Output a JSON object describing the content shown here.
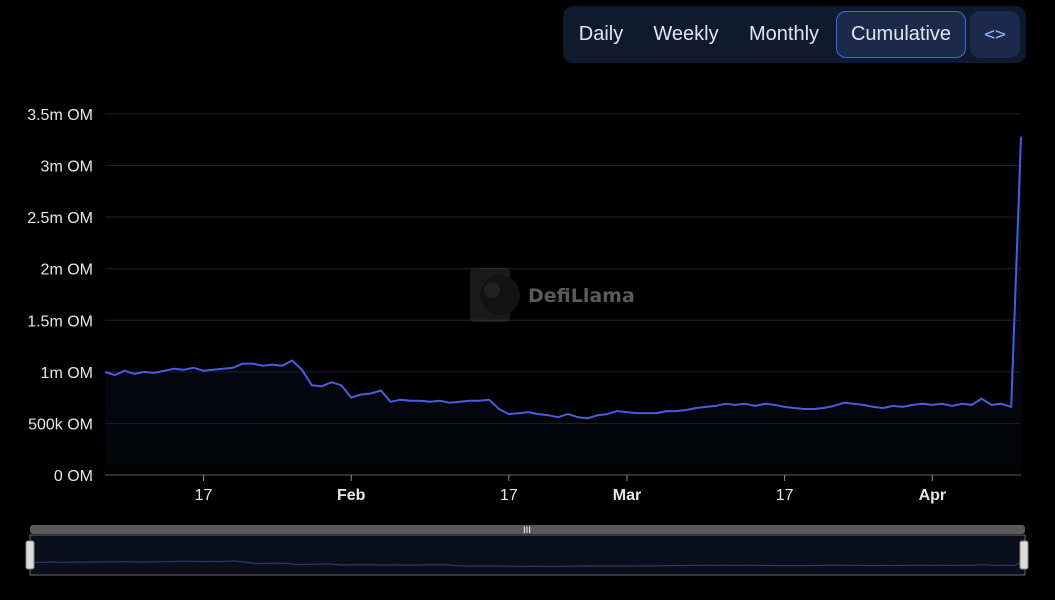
{
  "toggle": {
    "tabs": [
      {
        "label": "Daily",
        "active": false
      },
      {
        "label": "Weekly",
        "active": false
      },
      {
        "label": "Monthly",
        "active": false
      },
      {
        "label": "Cumulative",
        "active": true
      }
    ],
    "embed_label": "<>"
  },
  "watermark": {
    "text": "DefiLlama"
  },
  "colors": {
    "line": "#4a5ce0",
    "grid": "#1e2430",
    "axis_text": "#e6e6e6",
    "tab_active_border": "#3c6bd6"
  },
  "chart_data": {
    "type": "line",
    "title": "",
    "xlabel": "",
    "ylabel": "",
    "ylim": [
      0,
      3500000
    ],
    "y_ticks": [
      {
        "value": 0,
        "label": "0 OM"
      },
      {
        "value": 500000,
        "label": "500k OM"
      },
      {
        "value": 1000000,
        "label": "1m OM"
      },
      {
        "value": 1500000,
        "label": "1.5m OM"
      },
      {
        "value": 2000000,
        "label": "2m OM"
      },
      {
        "value": 2500000,
        "label": "2.5m OM"
      },
      {
        "value": 3000000,
        "label": "3m OM"
      },
      {
        "value": 3500000,
        "label": "3.5m OM"
      }
    ],
    "x_range": [
      "2025-01-07",
      "2025-04-10"
    ],
    "x_ticks": [
      {
        "date": "2025-01-17",
        "label": "17",
        "bold": false
      },
      {
        "date": "2025-02-01",
        "label": "Feb",
        "bold": true
      },
      {
        "date": "2025-02-17",
        "label": "17",
        "bold": false
      },
      {
        "date": "2025-03-01",
        "label": "Mar",
        "bold": true
      },
      {
        "date": "2025-03-17",
        "label": "17",
        "bold": false
      },
      {
        "date": "2025-04-01",
        "label": "Apr",
        "bold": true
      }
    ],
    "series": [
      {
        "points": [
          [
            "2025-01-07",
            1000000
          ],
          [
            "2025-01-08",
            970000
          ],
          [
            "2025-01-09",
            1010000
          ],
          [
            "2025-01-10",
            980000
          ],
          [
            "2025-01-11",
            1000000
          ],
          [
            "2025-01-12",
            990000
          ],
          [
            "2025-01-13",
            1010000
          ],
          [
            "2025-01-14",
            1030000
          ],
          [
            "2025-01-15",
            1020000
          ],
          [
            "2025-01-16",
            1040000
          ],
          [
            "2025-01-17",
            1010000
          ],
          [
            "2025-01-18",
            1020000
          ],
          [
            "2025-01-19",
            1030000
          ],
          [
            "2025-01-20",
            1040000
          ],
          [
            "2025-01-21",
            1080000
          ],
          [
            "2025-01-22",
            1080000
          ],
          [
            "2025-01-23",
            1060000
          ],
          [
            "2025-01-24",
            1070000
          ],
          [
            "2025-01-25",
            1060000
          ],
          [
            "2025-01-26",
            1110000
          ],
          [
            "2025-01-27",
            1020000
          ],
          [
            "2025-01-28",
            870000
          ],
          [
            "2025-01-29",
            860000
          ],
          [
            "2025-01-30",
            900000
          ],
          [
            "2025-01-31",
            870000
          ],
          [
            "2025-02-01",
            750000
          ],
          [
            "2025-02-02",
            780000
          ],
          [
            "2025-02-03",
            790000
          ],
          [
            "2025-02-04",
            820000
          ],
          [
            "2025-02-05",
            710000
          ],
          [
            "2025-02-06",
            730000
          ],
          [
            "2025-02-07",
            720000
          ],
          [
            "2025-02-08",
            720000
          ],
          [
            "2025-02-09",
            710000
          ],
          [
            "2025-02-10",
            720000
          ],
          [
            "2025-02-11",
            700000
          ],
          [
            "2025-02-12",
            710000
          ],
          [
            "2025-02-13",
            720000
          ],
          [
            "2025-02-14",
            720000
          ],
          [
            "2025-02-15",
            730000
          ],
          [
            "2025-02-16",
            640000
          ],
          [
            "2025-02-17",
            590000
          ],
          [
            "2025-02-18",
            600000
          ],
          [
            "2025-02-19",
            610000
          ],
          [
            "2025-02-20",
            590000
          ],
          [
            "2025-02-21",
            580000
          ],
          [
            "2025-02-22",
            560000
          ],
          [
            "2025-02-23",
            590000
          ],
          [
            "2025-02-24",
            560000
          ],
          [
            "2025-02-25",
            550000
          ],
          [
            "2025-02-26",
            580000
          ],
          [
            "2025-02-27",
            590000
          ],
          [
            "2025-02-28",
            620000
          ],
          [
            "2025-03-01",
            610000
          ],
          [
            "2025-03-02",
            600000
          ],
          [
            "2025-03-03",
            600000
          ],
          [
            "2025-03-04",
            600000
          ],
          [
            "2025-03-05",
            620000
          ],
          [
            "2025-03-06",
            620000
          ],
          [
            "2025-03-07",
            630000
          ],
          [
            "2025-03-08",
            650000
          ],
          [
            "2025-03-09",
            660000
          ],
          [
            "2025-03-10",
            670000
          ],
          [
            "2025-03-11",
            690000
          ],
          [
            "2025-03-12",
            680000
          ],
          [
            "2025-03-13",
            690000
          ],
          [
            "2025-03-14",
            670000
          ],
          [
            "2025-03-15",
            690000
          ],
          [
            "2025-03-16",
            680000
          ],
          [
            "2025-03-17",
            660000
          ],
          [
            "2025-03-18",
            650000
          ],
          [
            "2025-03-19",
            640000
          ],
          [
            "2025-03-20",
            640000
          ],
          [
            "2025-03-21",
            650000
          ],
          [
            "2025-03-22",
            670000
          ],
          [
            "2025-03-23",
            700000
          ],
          [
            "2025-03-24",
            690000
          ],
          [
            "2025-03-25",
            680000
          ],
          [
            "2025-03-26",
            660000
          ],
          [
            "2025-03-27",
            650000
          ],
          [
            "2025-03-28",
            670000
          ],
          [
            "2025-03-29",
            660000
          ],
          [
            "2025-03-30",
            680000
          ],
          [
            "2025-03-31",
            690000
          ],
          [
            "2025-04-01",
            680000
          ],
          [
            "2025-04-02",
            690000
          ],
          [
            "2025-04-03",
            670000
          ],
          [
            "2025-04-04",
            690000
          ],
          [
            "2025-04-05",
            680000
          ],
          [
            "2025-04-06",
            740000
          ],
          [
            "2025-04-07",
            680000
          ],
          [
            "2025-04-08",
            690000
          ],
          [
            "2025-04-09",
            660000
          ],
          [
            "2025-04-10",
            3280000
          ]
        ]
      }
    ],
    "grid": true,
    "legend": "none"
  }
}
